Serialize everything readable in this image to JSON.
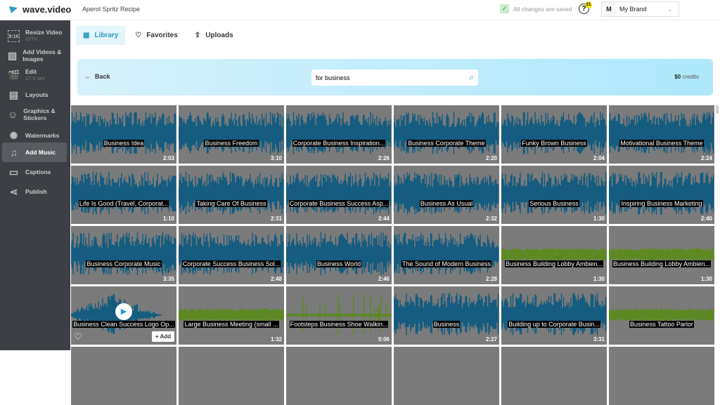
{
  "app": {
    "logo": "wave.video",
    "project": "Aperol Spritz Recipe",
    "saved": "All changes are saved",
    "help_badge": "21",
    "brand_initial": "M",
    "brand": "My Brand"
  },
  "sidebar": {
    "items": [
      {
        "label": "Resize Video",
        "sub": "IGTV",
        "icon": "resize-icon",
        "glyph": "9:16"
      },
      {
        "label": "Add Videos & Images",
        "sub": "",
        "icon": "image-icon",
        "glyph": "▨"
      },
      {
        "label": "Edit",
        "sub": "27.0 sec",
        "icon": "clapper-icon",
        "glyph": "🎬"
      },
      {
        "label": "Layouts",
        "sub": "",
        "icon": "layouts-icon",
        "glyph": "▤"
      },
      {
        "label": "Graphics & Stickers",
        "sub": "",
        "icon": "sticker-icon",
        "glyph": "☺"
      },
      {
        "label": "Watermarks",
        "sub": "",
        "icon": "watermark-icon",
        "glyph": "✺"
      },
      {
        "label": "Add Music",
        "sub": "",
        "icon": "music-icon",
        "glyph": "♫",
        "active": true
      },
      {
        "label": "Captions",
        "sub": "",
        "icon": "captions-icon",
        "glyph": "▭"
      },
      {
        "label": "Publish",
        "sub": "",
        "icon": "share-icon",
        "glyph": "⋖"
      }
    ]
  },
  "tabs": [
    {
      "label": "Library",
      "glyph": "▦"
    },
    {
      "label": "Favorites",
      "glyph": "♡"
    },
    {
      "label": "Uploads",
      "glyph": "⇪"
    }
  ],
  "banner": {
    "back": "Back",
    "search_value": "for business",
    "credits_amount": "$0",
    "credits_label": "credits"
  },
  "colors": {
    "blue": "#0e5a80",
    "green": "#5b8a1c",
    "accent": "#2a9cc4"
  },
  "hover": {
    "add": "Add"
  },
  "tracks": [
    {
      "title": "Business Idea",
      "duration": "2:03",
      "color": "blue"
    },
    {
      "title": "Business Freedom",
      "duration": "3:10",
      "color": "blue"
    },
    {
      "title": "Corporate Business Inspiration...",
      "duration": "2:26",
      "color": "blue"
    },
    {
      "title": "Business Corporate Theme",
      "duration": "2:20",
      "color": "blue"
    },
    {
      "title": "Funky Brown Business",
      "duration": "2:04",
      "color": "blue"
    },
    {
      "title": "Motivational Business Theme",
      "duration": "2:24",
      "color": "blue"
    },
    {
      "title": "Life Is Good (Travel, Corporat...",
      "duration": "1:10",
      "color": "blue"
    },
    {
      "title": "Taking Care Of Business",
      "duration": "2:31",
      "color": "blue"
    },
    {
      "title": "Corporate Business Success Asp...",
      "duration": "2:44",
      "color": "blue"
    },
    {
      "title": "Business As Usual",
      "duration": "2:32",
      "color": "blue"
    },
    {
      "title": "Serious Business",
      "duration": "1:30",
      "color": "blue"
    },
    {
      "title": "Inspiring Business Marketing",
      "duration": "2:40",
      "color": "blue"
    },
    {
      "title": "Business Corporate Music",
      "duration": "3:35",
      "color": "blue"
    },
    {
      "title": "Corporate Success Business Sol...",
      "duration": "2:48",
      "color": "blue"
    },
    {
      "title": "Business World",
      "duration": "2:46",
      "color": "blue"
    },
    {
      "title": "The Sound of Modern Business",
      "duration": "2:28",
      "color": "blue"
    },
    {
      "title": "Business Building Lobby Ambien...",
      "duration": "1:30",
      "color": "green"
    },
    {
      "title": "Business Building Lobby Ambien...",
      "duration": "1:30",
      "color": "green"
    },
    {
      "title": "Business Clean Success Logo Op...",
      "duration": "",
      "color": "blue",
      "hovered": true
    },
    {
      "title": "Large Business Meeting (small ...",
      "duration": "1:32",
      "color": "green"
    },
    {
      "title": "Footsteps Business Shoe Walkin...",
      "duration": "0:06",
      "color": "green"
    },
    {
      "title": "Business",
      "duration": "2:27",
      "color": "blue"
    },
    {
      "title": "Building up to Corporate Busin...",
      "duration": "3:31",
      "color": "blue"
    },
    {
      "title": "Business Tattoo Parlor",
      "duration": "",
      "color": "green"
    }
  ]
}
